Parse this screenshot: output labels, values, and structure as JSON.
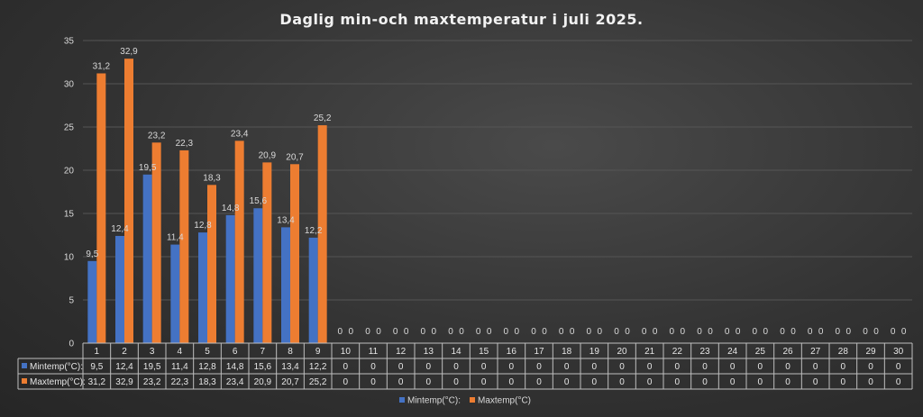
{
  "chart_data": {
    "type": "bar",
    "title": "Daglig min-och maxtemperatur i juli 2025.",
    "ylim": [
      0,
      35
    ],
    "yticks": [
      0,
      5,
      10,
      15,
      20,
      25,
      30,
      35
    ],
    "grid": true,
    "legend": "bottom",
    "categories": [
      "1",
      "2",
      "3",
      "4",
      "5",
      "6",
      "7",
      "8",
      "9",
      "10",
      "11",
      "12",
      "13",
      "14",
      "15",
      "16",
      "17",
      "18",
      "19",
      "20",
      "21",
      "22",
      "23",
      "24",
      "25",
      "26",
      "27",
      "28",
      "29",
      "30"
    ],
    "series": [
      {
        "name": "Mintemp(°C):",
        "table_label": "Mintemp(°C):",
        "color": "#4472c4",
        "values": [
          9.5,
          12.4,
          19.5,
          11.4,
          12.8,
          14.8,
          15.6,
          13.4,
          12.2,
          0,
          0,
          0,
          0,
          0,
          0,
          0,
          0,
          0,
          0,
          0,
          0,
          0,
          0,
          0,
          0,
          0,
          0,
          0,
          0,
          0
        ],
        "labels": [
          "9,5",
          "12,4",
          "19,5",
          "11,4",
          "12,8",
          "14,8",
          "15,6",
          "13,4",
          "12,2",
          "0",
          "0",
          "0",
          "0",
          "0",
          "0",
          "0",
          "0",
          "0",
          "0",
          "0",
          "0",
          "0",
          "0",
          "0",
          "0",
          "0",
          "0",
          "0",
          "0",
          "0"
        ]
      },
      {
        "name": "Maxtemp(°C)",
        "table_label": "Maxtemp(°C):",
        "color": "#ed7d31",
        "values": [
          31.2,
          32.9,
          23.2,
          22.3,
          18.3,
          23.4,
          20.9,
          20.7,
          25.2,
          0,
          0,
          0,
          0,
          0,
          0,
          0,
          0,
          0,
          0,
          0,
          0,
          0,
          0,
          0,
          0,
          0,
          0,
          0,
          0,
          0
        ],
        "labels": [
          "31,2",
          "32,9",
          "23,2",
          "22,3",
          "18,3",
          "23,4",
          "20,9",
          "20,7",
          "25,2",
          "0",
          "0",
          "0",
          "0",
          "0",
          "0",
          "0",
          "0",
          "0",
          "0",
          "0",
          "0",
          "0",
          "0",
          "0",
          "0",
          "0",
          "0",
          "0",
          "0",
          "0"
        ]
      }
    ]
  }
}
